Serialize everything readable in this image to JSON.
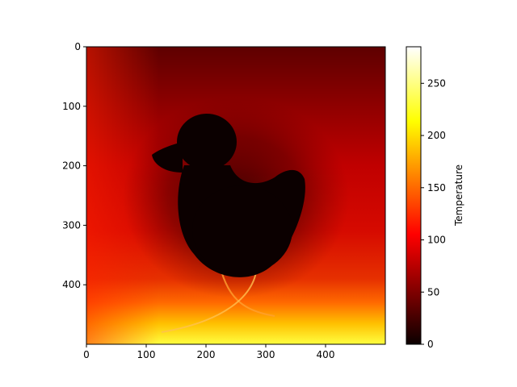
{
  "chart_data": {
    "type": "heatmap",
    "title": "",
    "xlabel": "",
    "ylabel": "",
    "xlim": [
      0,
      500
    ],
    "ylim": [
      500,
      0
    ],
    "x_ticks": [
      0,
      100,
      200,
      300,
      400
    ],
    "y_ticks": [
      0,
      100,
      200,
      300,
      400
    ],
    "x_tick_labels": [
      "0",
      "100",
      "200",
      "300",
      "400"
    ],
    "y_tick_labels": [
      "0",
      "100",
      "200",
      "300",
      "400"
    ],
    "colormap": "hot",
    "colorbar": {
      "label": "Temperature",
      "range": [
        0,
        285
      ],
      "ticks": [
        0,
        50,
        100,
        150,
        200,
        250
      ],
      "tick_labels": [
        "0",
        "50",
        "100",
        "150",
        "200",
        "250"
      ]
    },
    "shape": "duck",
    "field_description": {
      "top_value": 35,
      "middle_value": 95,
      "bottom_value": 285,
      "duck_value": 0
    }
  }
}
